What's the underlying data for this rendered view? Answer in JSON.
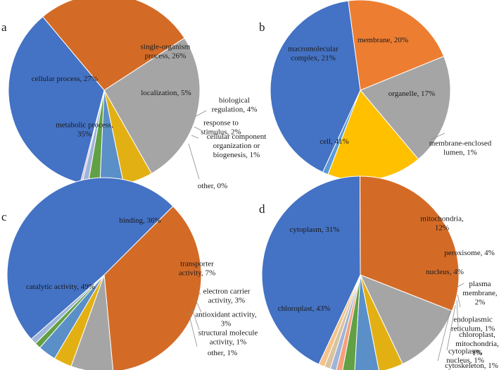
{
  "chart_data": [
    {
      "panel": "a",
      "type": "pie",
      "categories": [
        "single-organism process",
        "localization",
        "biological regulation",
        "response to stimulus",
        "cellular component organization or biogenesis",
        "other",
        "metabolic process",
        "cellular process"
      ],
      "values": [
        26,
        5,
        4,
        2,
        1,
        0.3,
        35,
        27
      ],
      "labels": [
        [
          "single-organism",
          "process, 26%"
        ],
        [
          "localization, 5%"
        ],
        [
          "biological",
          "regulation, 4%"
        ],
        [
          "response to",
          "stimulus, 2%"
        ],
        [
          "cellular component",
          "organization or",
          "biogenesis, 1%"
        ],
        [
          "other, 0%"
        ],
        [
          "metabolic process,",
          "35%"
        ],
        [
          "cellular process, 27%"
        ]
      ],
      "colors": [
        "#a5a5a5",
        "#e2b013",
        "#5a8fc7",
        "#62a046",
        "#9fb4d8",
        "#c9a8d2",
        "#4472c4",
        "#d36b27"
      ]
    },
    {
      "panel": "b",
      "type": "pie",
      "categories": [
        "membrane",
        "organelle",
        "membrane-enclosed lumen",
        "cell",
        "macromolecular complex"
      ],
      "values": [
        20,
        17,
        1,
        41,
        21
      ],
      "labels": [
        [
          "membrane, 20%"
        ],
        [
          "organelle, 17%"
        ],
        [
          "membrane-enclosed",
          "lumen, 1%"
        ],
        [
          "cell, 41%"
        ],
        [
          "macromolecular",
          "complex, 21%"
        ]
      ],
      "colors": [
        "#a5a5a5",
        "#ffc000",
        "#5b9bd5",
        "#4472c4",
        "#ed7d31"
      ]
    },
    {
      "panel": "c",
      "type": "pie",
      "categories": [
        "binding",
        "transporter activity",
        "electron carrier activity",
        "antioxidant activity",
        "structural molecule activity",
        "other",
        "catalytic activity"
      ],
      "values": [
        36,
        7,
        3,
        3,
        1,
        1,
        49
      ],
      "labels": [
        [
          "binding, 36%"
        ],
        [
          "transporter",
          "activity, 7%"
        ],
        [
          "electron carrier",
          "activity, 3%"
        ],
        [
          "antioxidant activity,",
          "3%"
        ],
        [
          "structural molecule",
          "activity, 1%"
        ],
        [
          "other, 1%"
        ],
        [
          "catalytic activity, 49%"
        ]
      ],
      "colors": [
        "#d36b27",
        "#a5a5a5",
        "#e2b013",
        "#5a8fc7",
        "#62a046",
        "#9fb4d8",
        "#4472c4"
      ]
    },
    {
      "panel": "d",
      "type": "pie",
      "categories": [
        "mitochondria",
        "peroxisome",
        "nucleus",
        "plasma membrane",
        "endoplasmic reticulum",
        "chloroplast, mitochondria",
        "cytoplasm, nucleus",
        "cytoskeleton",
        "chloroplast",
        "cytoplasm"
      ],
      "values": [
        12,
        4,
        4,
        2,
        1,
        1,
        1,
        1,
        43,
        31
      ],
      "labels": [
        [
          "mitochondria,",
          "12%"
        ],
        [
          "peroxisome, 4%"
        ],
        [
          "nucleus, 4%"
        ],
        [
          "plasma",
          "membrane,",
          "2%"
        ],
        [
          "endoplasmic",
          "reticulum, 1%"
        ],
        [
          "chloroplast,",
          "mitochondria,",
          "1%"
        ],
        [
          "cytoplasm,",
          "nucleus, 1%"
        ],
        [
          "cytoskeleton, 1%"
        ],
        [
          "chloroplast, 43%"
        ],
        [
          "cytoplasm, 31%"
        ]
      ],
      "colors": [
        "#a5a5a5",
        "#e2b013",
        "#5a8fc7",
        "#62a046",
        "#f4a07a",
        "#9fb4d8",
        "#d9c4a0",
        "#f5c28a",
        "#4472c4",
        "#d36b27"
      ]
    }
  ]
}
